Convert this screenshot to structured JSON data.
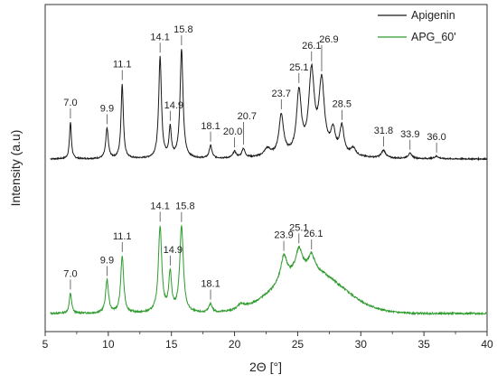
{
  "chart_data": {
    "type": "line",
    "title": "",
    "xlabel": "2Θ [°]",
    "ylabel": "Intensity (a.u)",
    "xlim": [
      5,
      40
    ],
    "x_ticks": [
      5,
      10,
      15,
      20,
      25,
      30,
      35,
      40
    ],
    "y_ticks_shown": false,
    "grid": false,
    "legend_position": "top-right",
    "series": [
      {
        "name": "Apigenin",
        "color": "#1a1a1a",
        "baseline": 0.0,
        "broad_hump": {
          "center": 26.0,
          "width": 3.2,
          "height": 0.02
        },
        "peaks": [
          {
            "x": 7.0,
            "y": 0.29,
            "w": 0.09,
            "label": "7.0"
          },
          {
            "x": 9.9,
            "y": 0.24,
            "w": 0.12,
            "label": "9.9"
          },
          {
            "x": 11.1,
            "y": 0.59,
            "w": 0.11,
            "label": "11.1"
          },
          {
            "x": 14.1,
            "y": 0.8,
            "w": 0.13,
            "label": "14.1"
          },
          {
            "x": 14.9,
            "y": 0.23,
            "w": 0.11,
            "label": "14.9"
          },
          {
            "x": 15.8,
            "y": 0.86,
            "w": 0.14,
            "label": "15.8"
          },
          {
            "x": 18.1,
            "y": 0.1,
            "w": 0.13,
            "label": "18.1"
          },
          {
            "x": 20.0,
            "y": 0.05,
            "w": 0.15,
            "label": "20.0"
          },
          {
            "x": 20.7,
            "y": 0.07,
            "w": 0.15,
            "label": "20.7"
          },
          {
            "x": 22.6,
            "y": 0.06,
            "w": 0.3,
            "label": ""
          },
          {
            "x": 23.7,
            "y": 0.32,
            "w": 0.22,
            "label": "23.7"
          },
          {
            "x": 25.1,
            "y": 0.49,
            "w": 0.22,
            "label": "25.1"
          },
          {
            "x": 26.1,
            "y": 0.64,
            "w": 0.26,
            "label": "26.1"
          },
          {
            "x": 26.9,
            "y": 0.56,
            "w": 0.26,
            "label": "26.9"
          },
          {
            "x": 27.8,
            "y": 0.18,
            "w": 0.22,
            "label": ""
          },
          {
            "x": 28.5,
            "y": 0.22,
            "w": 0.2,
            "label": "28.5"
          },
          {
            "x": 29.4,
            "y": 0.06,
            "w": 0.25,
            "label": ""
          },
          {
            "x": 31.8,
            "y": 0.06,
            "w": 0.2,
            "label": "31.8"
          },
          {
            "x": 33.9,
            "y": 0.04,
            "w": 0.2,
            "label": "33.9"
          },
          {
            "x": 36.0,
            "y": 0.02,
            "w": 0.2,
            "label": "36.0"
          }
        ]
      },
      {
        "name": "APG_60'",
        "color": "#2e9b2e",
        "baseline": 0.0,
        "broad_hump": {
          "center": 25.9,
          "width": 2.6,
          "height": 0.34
        },
        "peaks": [
          {
            "x": 7.0,
            "y": 0.16,
            "w": 0.11,
            "label": "7.0"
          },
          {
            "x": 9.9,
            "y": 0.26,
            "w": 0.14,
            "label": "9.9"
          },
          {
            "x": 11.1,
            "y": 0.45,
            "w": 0.14,
            "label": "11.1"
          },
          {
            "x": 14.1,
            "y": 0.68,
            "w": 0.16,
            "label": "14.1"
          },
          {
            "x": 14.9,
            "y": 0.3,
            "w": 0.14,
            "label": "14.9"
          },
          {
            "x": 15.8,
            "y": 0.68,
            "w": 0.17,
            "label": "15.8"
          },
          {
            "x": 18.1,
            "y": 0.07,
            "w": 0.16,
            "label": "18.1"
          },
          {
            "x": 20.5,
            "y": 0.04,
            "w": 0.3,
            "label": ""
          },
          {
            "x": 23.9,
            "y": 0.2,
            "w": 0.3,
            "label": "23.9"
          },
          {
            "x": 25.1,
            "y": 0.18,
            "w": 0.3,
            "label": "25.1"
          },
          {
            "x": 26.1,
            "y": 0.12,
            "w": 0.3,
            "label": "26.1"
          }
        ]
      }
    ]
  }
}
